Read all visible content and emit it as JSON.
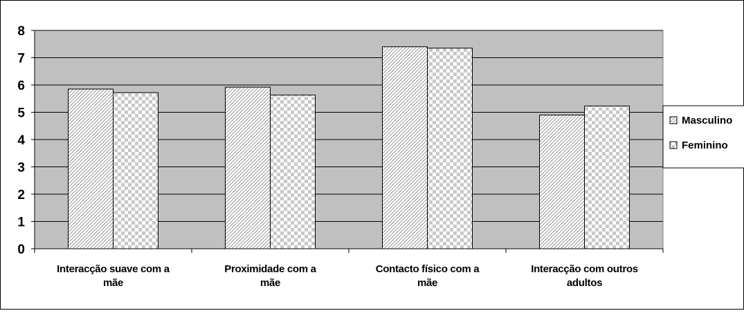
{
  "chart_data": {
    "type": "bar",
    "title": "",
    "xlabel": "",
    "ylabel": "",
    "ylim": [
      0,
      8
    ],
    "yticks": [
      0,
      1,
      2,
      3,
      4,
      5,
      6,
      7,
      8
    ],
    "grid": true,
    "legend_position": "right",
    "categories": [
      [
        "Interacção suave com a",
        "mãe"
      ],
      [
        "Proximidade com a",
        "mãe"
      ],
      [
        "Contacto físico com a",
        "mãe"
      ],
      [
        "Interacção com outros",
        "adultos"
      ]
    ],
    "series": [
      {
        "name": "Masculino",
        "pattern": "diagonal-hatch",
        "values": [
          5.85,
          5.92,
          7.4,
          4.9
        ]
      },
      {
        "name": "Feminino",
        "pattern": "checkerboard",
        "values": [
          5.72,
          5.63,
          7.35,
          5.23
        ]
      }
    ],
    "colors": {
      "plot_background": "#c0c0c0",
      "gridline": "#000000",
      "bar_outline": "#000000"
    }
  }
}
